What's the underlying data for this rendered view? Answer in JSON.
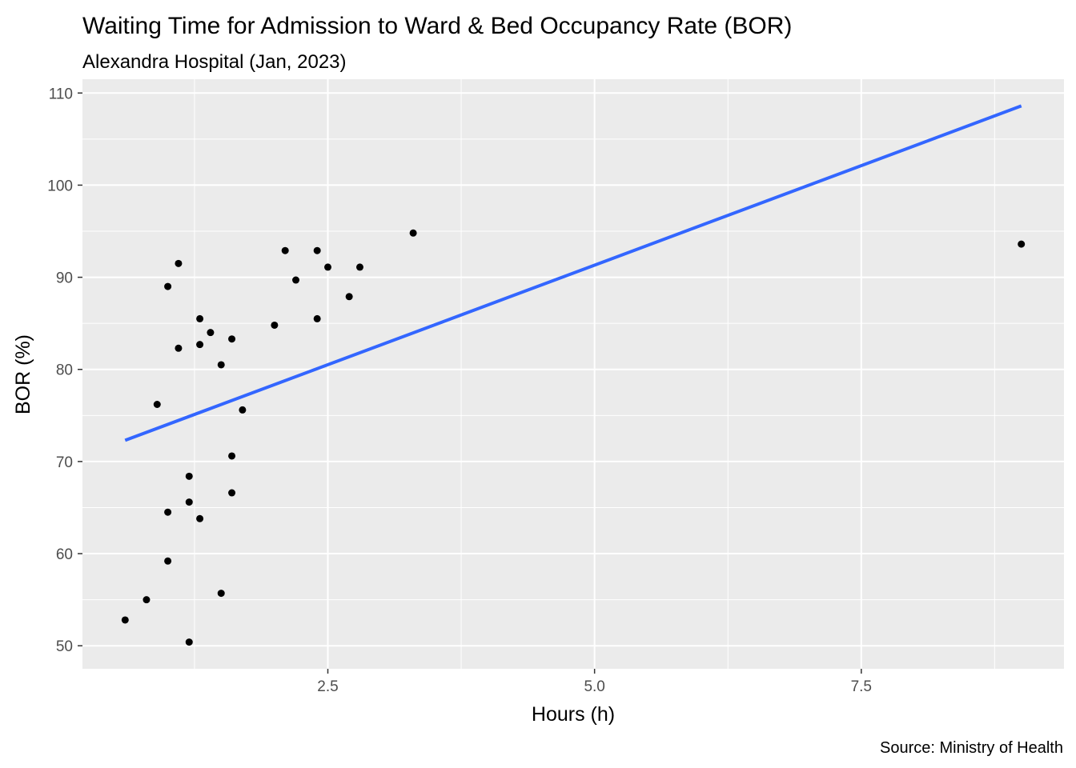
{
  "chart_data": {
    "type": "scatter",
    "title": "Waiting Time for Admission to Ward & Bed Occupancy Rate (BOR)",
    "subtitle": "Alexandra Hospital (Jan, 2023)",
    "xlabel": "Hours (h)",
    "ylabel": "BOR (%)",
    "caption": "Source: Ministry of Health",
    "xlim": [
      0.2,
      9.4
    ],
    "ylim": [
      47.5,
      111.5
    ],
    "x_ticks": [
      2.5,
      5.0,
      7.5
    ],
    "x_tick_labels": [
      "2.5",
      "5.0",
      "7.5"
    ],
    "y_ticks": [
      50,
      60,
      70,
      80,
      90,
      100,
      110
    ],
    "y_tick_labels": [
      "50",
      "60",
      "70",
      "80",
      "90",
      "100",
      "110"
    ],
    "grid": true,
    "background": "#ebebeb",
    "point_color": "#000000",
    "trend_color": "#3366ff",
    "points": [
      {
        "x": 0.6,
        "y": 52.8
      },
      {
        "x": 0.8,
        "y": 55.0
      },
      {
        "x": 0.9,
        "y": 76.2
      },
      {
        "x": 1.0,
        "y": 89.0
      },
      {
        "x": 1.0,
        "y": 64.5
      },
      {
        "x": 1.0,
        "y": 59.2
      },
      {
        "x": 1.1,
        "y": 91.5
      },
      {
        "x": 1.1,
        "y": 82.3
      },
      {
        "x": 1.2,
        "y": 68.4
      },
      {
        "x": 1.2,
        "y": 65.6
      },
      {
        "x": 1.2,
        "y": 50.4
      },
      {
        "x": 1.3,
        "y": 85.5
      },
      {
        "x": 1.3,
        "y": 82.7
      },
      {
        "x": 1.3,
        "y": 63.8
      },
      {
        "x": 1.4,
        "y": 84.0
      },
      {
        "x": 1.5,
        "y": 80.5
      },
      {
        "x": 1.5,
        "y": 55.7
      },
      {
        "x": 1.6,
        "y": 83.3
      },
      {
        "x": 1.6,
        "y": 70.6
      },
      {
        "x": 1.6,
        "y": 66.6
      },
      {
        "x": 1.7,
        "y": 75.6
      },
      {
        "x": 2.0,
        "y": 84.8
      },
      {
        "x": 2.1,
        "y": 92.9
      },
      {
        "x": 2.2,
        "y": 89.7
      },
      {
        "x": 2.4,
        "y": 92.9
      },
      {
        "x": 2.4,
        "y": 85.5
      },
      {
        "x": 2.5,
        "y": 91.1
      },
      {
        "x": 2.7,
        "y": 87.9
      },
      {
        "x": 2.8,
        "y": 91.1
      },
      {
        "x": 3.3,
        "y": 94.8
      },
      {
        "x": 9.0,
        "y": 93.6
      }
    ],
    "trend_line": {
      "x": [
        0.6,
        9.0
      ],
      "y": [
        72.3,
        108.6
      ]
    }
  }
}
